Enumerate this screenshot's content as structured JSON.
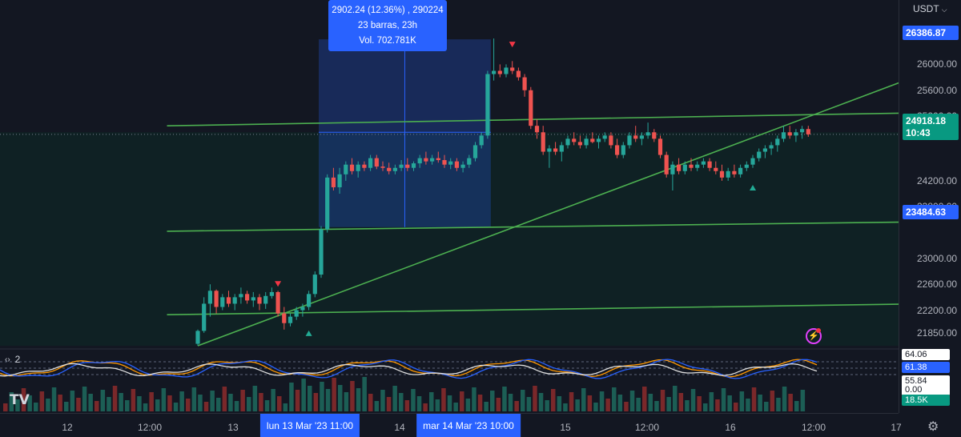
{
  "currency": "USDT",
  "currency_arrow": "chevron-down-icon",
  "colors": {
    "background": "#131722",
    "bull": "#26a69a",
    "bear": "#ef5350",
    "trendline": "#4caf50",
    "selection": "#2962ff",
    "tooltip_bg": "#2962ff",
    "signal_down": "#f23645",
    "signal_up": "#22ab94"
  },
  "price_axis": {
    "ticks": [
      "26000.00",
      "25600.00",
      "25200.00",
      "24200.00",
      "23800.00",
      "23000.00",
      "22600.00",
      "22200.00",
      "21850.00"
    ],
    "tick_values": [
      26000,
      25600,
      25200,
      24200,
      23800,
      23000,
      22600,
      22200,
      21850
    ],
    "top_label": "26386.87",
    "current_price": "24918.18",
    "countdown": "10:43",
    "range_low_label": "23484.63"
  },
  "tooltip": {
    "line1": "2902.24 (12.36%) , 290224",
    "line2": "23 barras, 23h",
    "line3": "Vol. 702.781K"
  },
  "time_axis": {
    "ticks": [
      "12",
      "12:00",
      "13",
      "14",
      "15",
      "12:00",
      "16",
      "12:00",
      "17"
    ],
    "badge_start": "lun 13 Mar '23   11:00",
    "badge_end": "mar 14 Mar '23   10:00"
  },
  "oscillator": {
    "label": "2",
    "values": [
      "64.06",
      "61.38",
      "55.84",
      "0.00"
    ],
    "volume_badge": "18.5K"
  },
  "logo_text": "TV",
  "settings_icon": "gear-icon",
  "alert_icon": "flash-icon",
  "chart_data": {
    "type": "candlestick",
    "price_range": [
      21500,
      26500
    ],
    "candles": [
      [
        21680,
        21900,
        21650,
        21880
      ],
      [
        21880,
        22400,
        21850,
        22300
      ],
      [
        22300,
        22600,
        22100,
        22500
      ],
      [
        22500,
        22520,
        22150,
        22250
      ],
      [
        22250,
        22450,
        22200,
        22400
      ],
      [
        22400,
        22500,
        22250,
        22300
      ],
      [
        22300,
        22450,
        22200,
        22400
      ],
      [
        22400,
        22550,
        22300,
        22450
      ],
      [
        22450,
        22500,
        22300,
        22350
      ],
      [
        22350,
        22480,
        22250,
        22400
      ],
      [
        22400,
        22450,
        22200,
        22300
      ],
      [
        22300,
        22480,
        22220,
        22420
      ],
      [
        22420,
        22550,
        22380,
        22480
      ],
      [
        22480,
        22500,
        22100,
        22150
      ],
      [
        22150,
        22250,
        21900,
        22000
      ],
      [
        22000,
        22150,
        21950,
        22100
      ],
      [
        22100,
        22250,
        22050,
        22200
      ],
      [
        22200,
        22300,
        22100,
        22250
      ],
      [
        22250,
        22500,
        22200,
        22450
      ],
      [
        22450,
        22800,
        22400,
        22750
      ],
      [
        22750,
        23500,
        22700,
        23450
      ],
      [
        23450,
        24300,
        23400,
        24250
      ],
      [
        24250,
        24400,
        24050,
        24100
      ],
      [
        24100,
        24400,
        24000,
        24300
      ],
      [
        24300,
        24500,
        24200,
        24450
      ],
      [
        24450,
        24550,
        24300,
        24350
      ],
      [
        24350,
        24500,
        24250,
        24450
      ],
      [
        24450,
        24500,
        24350,
        24400
      ],
      [
        24400,
        24600,
        24350,
        24550
      ],
      [
        24550,
        24600,
        24380,
        24420
      ],
      [
        24420,
        24500,
        24350,
        24400
      ],
      [
        24400,
        24480,
        24300,
        24350
      ],
      [
        24350,
        24450,
        24300,
        24400
      ],
      [
        24400,
        24520,
        24350,
        24450
      ],
      [
        24450,
        24550,
        24350,
        24400
      ],
      [
        24400,
        24500,
        24350,
        24470
      ],
      [
        24470,
        24600,
        24400,
        24550
      ],
      [
        24550,
        24650,
        24450,
        24500
      ],
      [
        24500,
        24600,
        24450,
        24550
      ],
      [
        24550,
        24650,
        24480,
        24520
      ],
      [
        24520,
        24600,
        24400,
        24450
      ],
      [
        24450,
        24550,
        24380,
        24500
      ],
      [
        24500,
        24550,
        24350,
        24400
      ],
      [
        24400,
        24500,
        24330,
        24450
      ],
      [
        24450,
        24600,
        24400,
        24550
      ],
      [
        24550,
        24800,
        24500,
        24750
      ],
      [
        24750,
        24950,
        24700,
        24900
      ],
      [
        24900,
        25900,
        24850,
        25850
      ],
      [
        25850,
        26400,
        25750,
        25900
      ],
      [
        25900,
        26000,
        25800,
        25850
      ],
      [
        25850,
        26000,
        25800,
        25950
      ],
      [
        25950,
        26050,
        25850,
        25900
      ],
      [
        25900,
        25950,
        25750,
        25800
      ],
      [
        25800,
        25850,
        25500,
        25600
      ],
      [
        25600,
        25650,
        25000,
        25050
      ],
      [
        25050,
        25150,
        24850,
        24950
      ],
      [
        24950,
        25050,
        24600,
        24650
      ],
      [
        24650,
        24750,
        24400,
        24700
      ],
      [
        24700,
        24800,
        24600,
        24650
      ],
      [
        24650,
        24800,
        24500,
        24750
      ],
      [
        24750,
        24900,
        24700,
        24850
      ],
      [
        24850,
        24950,
        24750,
        24800
      ],
      [
        24800,
        24900,
        24700,
        24750
      ],
      [
        24750,
        24900,
        24700,
        24850
      ],
      [
        24850,
        24950,
        24780,
        24800
      ],
      [
        24800,
        24900,
        24700,
        24850
      ],
      [
        24850,
        24950,
        24800,
        24900
      ],
      [
        24900,
        24950,
        24700,
        24750
      ],
      [
        24750,
        24850,
        24550,
        24600
      ],
      [
        24600,
        24800,
        24550,
        24750
      ],
      [
        24750,
        24950,
        24700,
        24900
      ],
      [
        24900,
        25050,
        24800,
        24850
      ],
      [
        24850,
        24950,
        24750,
        24900
      ],
      [
        24900,
        25100,
        24850,
        24950
      ],
      [
        24950,
        25000,
        24800,
        24850
      ],
      [
        24850,
        24900,
        24550,
        24600
      ],
      [
        24600,
        24650,
        24250,
        24300
      ],
      [
        24300,
        24500,
        24050,
        24450
      ],
      [
        24450,
        24550,
        24300,
        24350
      ],
      [
        24350,
        24500,
        24300,
        24450
      ],
      [
        24450,
        24550,
        24350,
        24400
      ],
      [
        24400,
        24500,
        24350,
        24450
      ],
      [
        24450,
        24550,
        24400,
        24500
      ],
      [
        24500,
        24550,
        24350,
        24400
      ],
      [
        24400,
        24500,
        24300,
        24350
      ],
      [
        24350,
        24450,
        24200,
        24250
      ],
      [
        24250,
        24400,
        24200,
        24350
      ],
      [
        24350,
        24450,
        24250,
        24300
      ],
      [
        24300,
        24450,
        24250,
        24400
      ],
      [
        24400,
        24500,
        24350,
        24450
      ],
      [
        24450,
        24600,
        24400,
        24550
      ],
      [
        24550,
        24700,
        24500,
        24650
      ],
      [
        24650,
        24750,
        24550,
        24700
      ],
      [
        24700,
        24800,
        24600,
        24750
      ],
      [
        24750,
        24900,
        24650,
        24850
      ],
      [
        24850,
        25050,
        24800,
        24950
      ],
      [
        24950,
        25050,
        24850,
        24900
      ],
      [
        24900,
        25000,
        24800,
        24950
      ],
      [
        24950,
        25050,
        24850,
        25000
      ],
      [
        25000,
        25050,
        24880,
        24918
      ]
    ],
    "trendlines": [
      {
        "from": [
          0,
          21650
        ],
        "to": [
          104,
          25400
        ]
      },
      {
        "from": [
          -5,
          25050
        ],
        "to": [
          104,
          25230
        ]
      },
      {
        "from": [
          -5,
          23420
        ],
        "to": [
          104,
          23550
        ]
      },
      {
        "from": [
          -5,
          22130
        ],
        "to": [
          104,
          22280
        ]
      }
    ],
    "selection": {
      "from_index": 20,
      "to_index": 47,
      "low": 23484.63,
      "high": 26386.87
    }
  }
}
